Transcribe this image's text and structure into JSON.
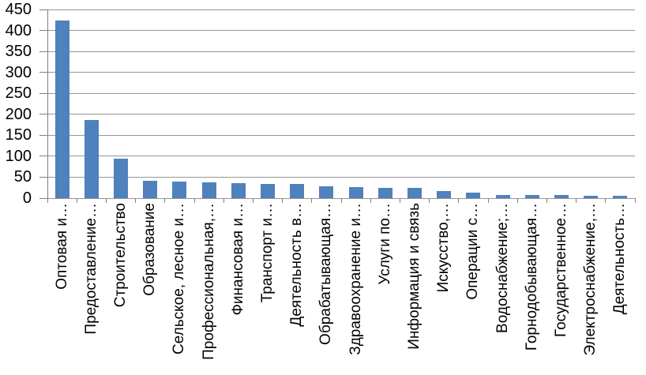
{
  "chart_data": {
    "type": "bar",
    "title": "",
    "xlabel": "",
    "ylabel": "",
    "categories": [
      "Оптовая и…",
      "Предоставление…",
      "Строительство",
      "Образование",
      "Сельское, лесное и…",
      "Профессиональная,…",
      "Финансовая и…",
      "Транспорт и…",
      "Деятельность в…",
      "Обрабатывающая…",
      "Здравоохранение и…",
      "Услуги по…",
      "Информация и связь",
      "Искусство,…",
      "Операции с…",
      "Водоснабжение;…",
      "Горнодобывающая…",
      "Государственное…",
      "Электроснабжение,…",
      "Деятельность…"
    ],
    "values": [
      423,
      186,
      95,
      41,
      39,
      37,
      36,
      34,
      33,
      28,
      27,
      25,
      25,
      17,
      13,
      8,
      7,
      7,
      5,
      5
    ],
    "ylim": [
      0,
      450
    ],
    "ytick_step": 50,
    "ytick_labels": [
      "0",
      "50",
      "100",
      "150",
      "200",
      "250",
      "300",
      "350",
      "400",
      "450"
    ],
    "grid": true,
    "legend": false,
    "bar_color": "#4F81BD",
    "gridline_color": "#969696",
    "axis_color": "#808080",
    "text_color": "#000000"
  }
}
